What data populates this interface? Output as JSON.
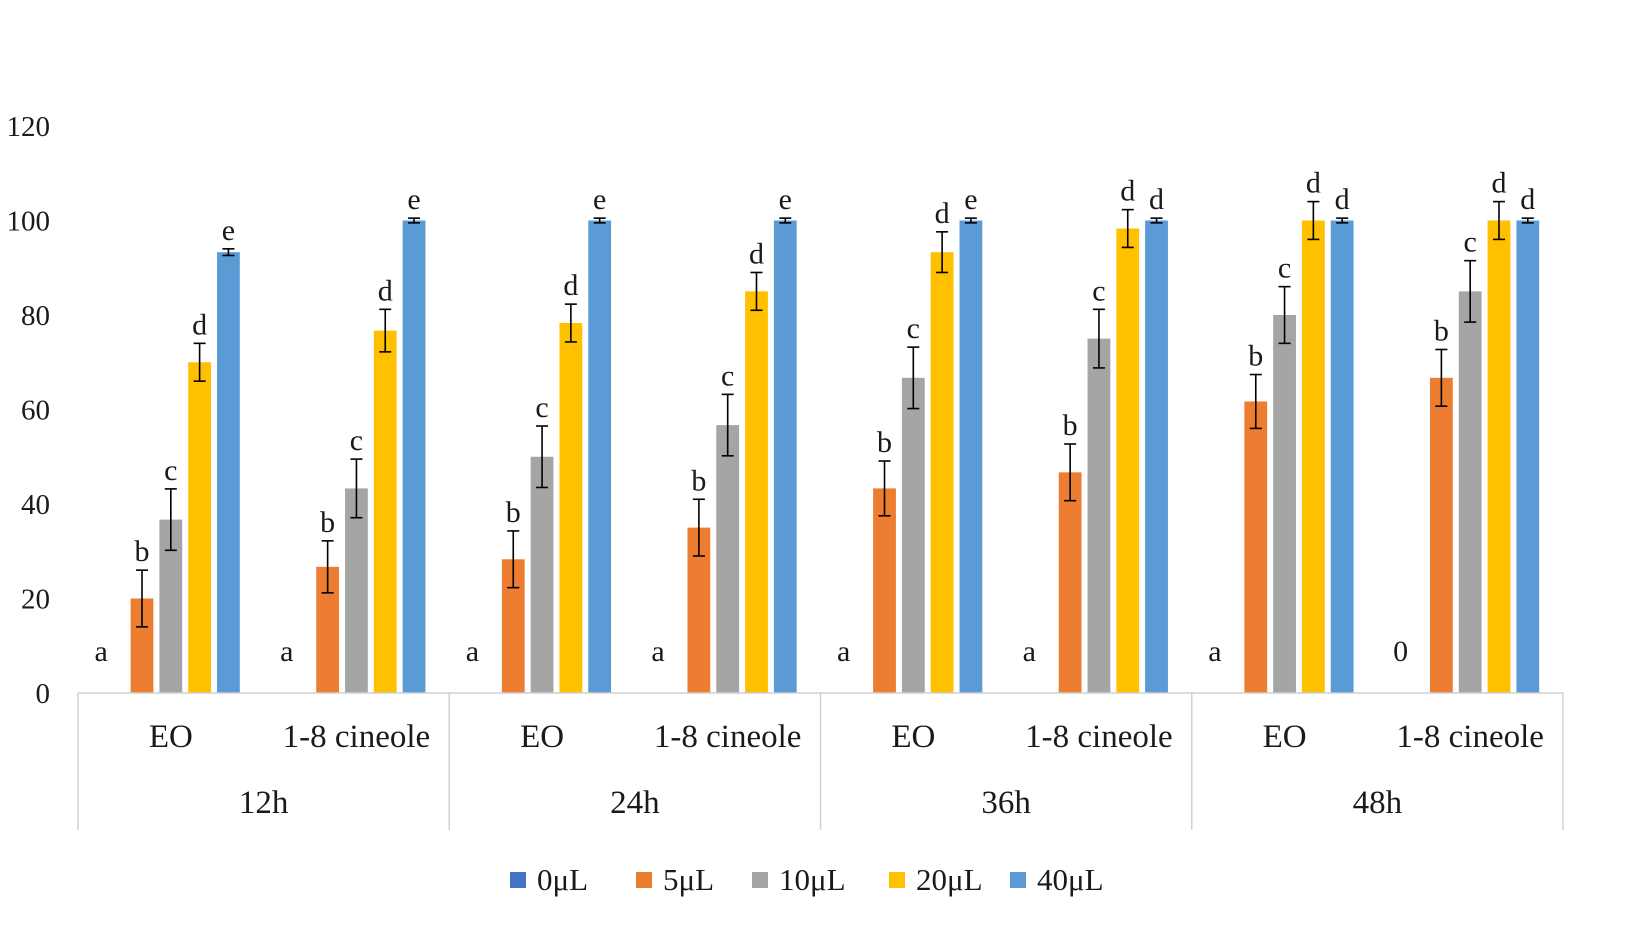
{
  "chart_data": {
    "type": "bar",
    "title": "",
    "xlabel": "",
    "ylabel": "",
    "ylim": [
      0,
      120
    ],
    "yticks": [
      0,
      20,
      40,
      60,
      80,
      100,
      120
    ],
    "grid": false,
    "legend_position": "bottom",
    "groups": [
      "12h",
      "24h",
      "36h",
      "48h"
    ],
    "subgroups": [
      "EO",
      "1-8 cineole"
    ],
    "categories": [
      "12h EO",
      "12h 1-8 cineole",
      "24h EO",
      "24h 1-8 cineole",
      "36h EO",
      "36h 1-8 cineole",
      "48h EO",
      "48h 1-8 cineole"
    ],
    "series": [
      {
        "name": "0μL",
        "color": "#4472C4",
        "values": [
          0,
          0,
          0,
          0,
          0,
          0,
          0,
          0
        ],
        "errors": [
          0,
          0,
          0,
          0,
          0,
          0,
          0,
          0
        ],
        "labels": [
          "a",
          "a",
          "a",
          "a",
          "a",
          "a",
          "a",
          "0"
        ]
      },
      {
        "name": "5μL",
        "color": "#ED7D31",
        "values": [
          20,
          26.7,
          28.3,
          35,
          43.3,
          46.7,
          61.7,
          66.7
        ],
        "errors": [
          6,
          5.5,
          6,
          6,
          5.8,
          6,
          5.7,
          6
        ],
        "labels": [
          "b",
          "b",
          "b",
          "b",
          "b",
          "b",
          "b",
          "b"
        ]
      },
      {
        "name": "10μL",
        "color": "#A5A5A5",
        "values": [
          36.7,
          43.3,
          50,
          56.7,
          66.7,
          75,
          80,
          85
        ],
        "errors": [
          6.5,
          6.2,
          6.5,
          6.5,
          6.5,
          6.2,
          6,
          6.5
        ],
        "labels": [
          "c",
          "c",
          "c",
          "c",
          "c",
          "c",
          "c",
          "c"
        ]
      },
      {
        "name": "20μL",
        "color": "#FFC000",
        "values": [
          70,
          76.7,
          78.3,
          85,
          93.3,
          98.3,
          100,
          100
        ],
        "errors": [
          4,
          4.5,
          4,
          4,
          4.3,
          4,
          4,
          4
        ],
        "labels": [
          "d",
          "d",
          "d",
          "d",
          "d",
          "d",
          "d",
          "d"
        ]
      },
      {
        "name": "40μL",
        "color": "#5B9BD5",
        "values": [
          93.3,
          100,
          100,
          100,
          100,
          100,
          100,
          100
        ],
        "errors": [
          0.7,
          0.5,
          0.5,
          0.5,
          0.5,
          0.5,
          0.5,
          0.5
        ],
        "labels": [
          "e",
          "e",
          "e",
          "e",
          "e",
          "d",
          "d",
          "d"
        ]
      }
    ]
  }
}
